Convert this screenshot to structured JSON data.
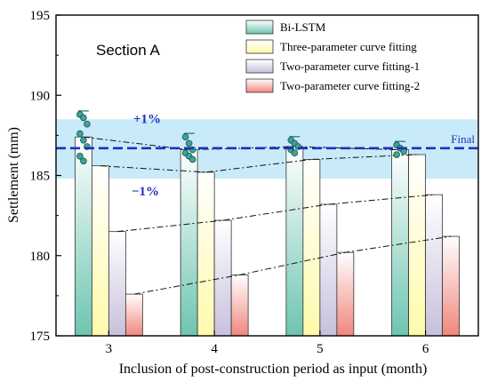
{
  "chart_data": {
    "type": "bar",
    "title": "Section A",
    "xlabel": "Inclusion of post-construction period as input (month)",
    "ylabel": "Settlement (mm)",
    "ylim": [
      175,
      195
    ],
    "yticks": [
      175,
      180,
      185,
      190,
      195
    ],
    "categories": [
      "3",
      "4",
      "5",
      "6"
    ],
    "series": [
      {
        "name": "Bi-LSTM",
        "values": [
          187.4,
          186.6,
          186.8,
          186.6
        ],
        "color": "#6dc5b0"
      },
      {
        "name": "Three-parameter curve fitting",
        "values": [
          185.6,
          185.2,
          186.0,
          186.3
        ],
        "color": "#fffaaa"
      },
      {
        "name": "Two-parameter curve fitting-1",
        "values": [
          181.5,
          182.2,
          183.2,
          183.8
        ],
        "color": "#c7c0dd"
      },
      {
        "name": "Two-parameter curve fitting-2",
        "values": [
          177.6,
          178.8,
          180.2,
          181.2
        ],
        "color": "#f0877c"
      }
    ],
    "bilstm_points": [
      [
        188.8,
        188.6,
        188.2,
        187.6,
        187.2,
        186.8,
        186.2,
        185.9
      ],
      [
        187.4,
        187.0,
        186.6,
        186.4,
        186.2,
        186.0
      ],
      [
        187.2,
        187.0,
        186.8,
        186.6,
        186.4
      ],
      [
        186.9,
        186.7,
        186.5,
        186.3
      ]
    ],
    "final_value": 186.7,
    "final_label": "Final",
    "band": {
      "upper": 188.5,
      "lower": 184.8,
      "upper_label": "+1%",
      "lower_label": "−1%",
      "color": "#bfe6f7"
    },
    "legend_position": "top-right",
    "grid": false
  }
}
